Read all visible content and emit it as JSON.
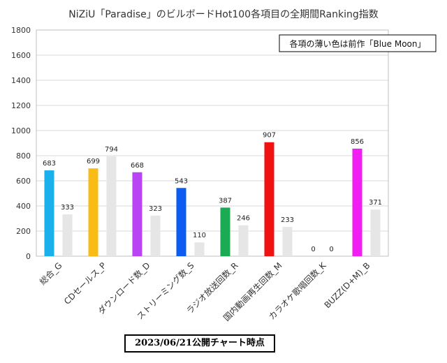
{
  "title": "NiZiU「Paradise」のビルボードHot100各項目の全期間Ranking指数",
  "footer": "2023/06/21公開チャート時点",
  "chart_data": {
    "type": "bar",
    "title": "NiZiU「Paradise」のビルボードHot100各項目の全期間Ranking指数",
    "annotation": "各項の薄い色は前作「Blue Moon」",
    "categories": [
      "総合_G",
      "CDセールス_P",
      "ダウンロード数_D",
      "ストリーミング数_S",
      "ラジオ放送回数_R",
      "国内動画再生回数_M",
      "カラオケ歌唱回数_K",
      "BUZZ(D+M)_B"
    ],
    "series": [
      {
        "name": "Paradise",
        "values": [
          683,
          699,
          668,
          543,
          387,
          907,
          0,
          856
        ]
      },
      {
        "name": "Blue Moon",
        "values": [
          333,
          794,
          323,
          110,
          246,
          233,
          0,
          371
        ]
      }
    ],
    "colors": [
      "#1ab0ec",
      "#f9bc15",
      "#b844f3",
      "#0c5cf2",
      "#1caa52",
      "#f01212",
      "#999999",
      "#f21df2"
    ],
    "prev_color": "#e6e6e6",
    "ylim": [
      0,
      1800
    ],
    "yticks": [
      0,
      200,
      400,
      600,
      800,
      1000,
      1200,
      1400,
      1600,
      1800
    ],
    "grid": true,
    "legend": "none"
  }
}
